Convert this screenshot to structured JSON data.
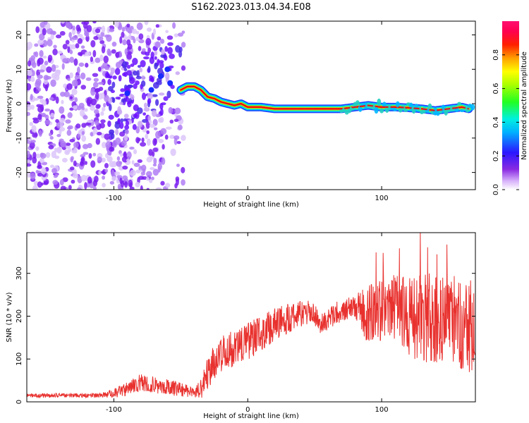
{
  "title": "S162.2023.013.04.34.E08",
  "chart_data": [
    {
      "type": "heatmap",
      "name": "spectrogram",
      "xlabel": "Height of straight line (km)",
      "ylabel": "Frequency (Hz)",
      "xlim": [
        -165,
        170
      ],
      "ylim": [
        -25,
        24
      ],
      "xticks": [
        -100,
        0,
        100
      ],
      "yticks": [
        -20,
        -10,
        0,
        10,
        20
      ],
      "ridge": {
        "x": [
          -50,
          -45,
          -40,
          -35,
          -30,
          -25,
          -20,
          -15,
          -10,
          -5,
          0,
          10,
          20,
          40,
          60,
          70,
          80,
          90,
          100,
          110,
          120,
          130,
          140,
          150,
          160,
          165
        ],
        "y": [
          4,
          5,
          5,
          4,
          2,
          1.5,
          0.5,
          0,
          -0.5,
          0,
          -1,
          -1,
          -1.5,
          -1.5,
          -1.5,
          -1.5,
          -1,
          -0.5,
          -1,
          -1,
          -1.2,
          -1.5,
          -2,
          -1.5,
          -1,
          -1.5
        ]
      },
      "colorbar": {
        "label": "Normalized spectral amplitude",
        "range": [
          0,
          1
        ],
        "ticks": [
          0.0,
          0.2,
          0.4,
          0.6,
          0.8
        ],
        "tick_labels": [
          "0.0",
          "0.2",
          "0.4",
          "0.6",
          "0.8"
        ]
      }
    },
    {
      "type": "line",
      "name": "snr",
      "xlabel": "Height of straight line (km)",
      "ylabel": "SNR (10 * v/v)",
      "xlim": [
        -165,
        170
      ],
      "ylim": [
        0,
        395
      ],
      "xticks": [
        -100,
        0,
        100
      ],
      "yticks": [
        0,
        100,
        200,
        300
      ],
      "color": "#e8312e",
      "trend": {
        "x": [
          -165,
          -110,
          -100,
          -90,
          -80,
          -70,
          -60,
          -50,
          -40,
          -35,
          -30,
          -20,
          -10,
          0,
          10,
          20,
          30,
          40,
          45,
          50,
          55,
          60,
          70,
          80,
          90,
          100,
          110,
          120,
          130,
          140,
          150,
          160,
          170
        ],
        "y": [
          15,
          15,
          20,
          30,
          45,
          40,
          35,
          30,
          20,
          30,
          70,
          110,
          125,
          140,
          160,
          180,
          195,
          205,
          210,
          205,
          180,
          195,
          215,
          220,
          205,
          215,
          220,
          200,
          195,
          200,
          195,
          185,
          175
        ]
      },
      "noise": {
        "x": [
          -165,
          -110,
          -100,
          -80,
          -50,
          -40,
          -30,
          0,
          60,
          80,
          90,
          100,
          120,
          140,
          170
        ],
        "amp": [
          5,
          5,
          12,
          20,
          18,
          10,
          40,
          45,
          25,
          30,
          70,
          75,
          95,
          110,
          110
        ]
      }
    }
  ]
}
